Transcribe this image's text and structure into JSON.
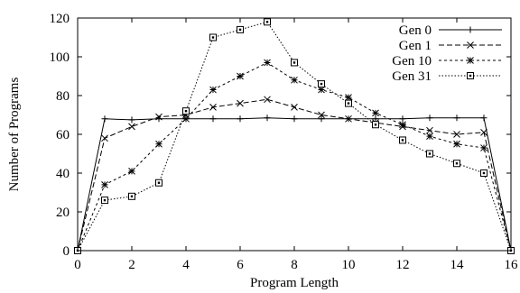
{
  "chart_data": {
    "type": "line",
    "xlabel": "Program Length",
    "ylabel": "Number of Programs",
    "xlim": [
      0,
      16
    ],
    "ylim": [
      0,
      120
    ],
    "xticks": [
      0,
      2,
      4,
      6,
      8,
      10,
      12,
      14,
      16
    ],
    "yticks": [
      0,
      20,
      40,
      60,
      80,
      100,
      120
    ],
    "grid": false,
    "legend_position": "top-right",
    "x": [
      0,
      1,
      2,
      3,
      4,
      5,
      6,
      7,
      8,
      9,
      10,
      11,
      12,
      13,
      14,
      15,
      16
    ],
    "series": [
      {
        "name": "Gen 0",
        "marker": "plus",
        "dash": "solid",
        "values": [
          0,
          68,
          67.5,
          68,
          68,
          68,
          68,
          68.5,
          68,
          68,
          68,
          68,
          68,
          68.5,
          68.5,
          68.5,
          0
        ]
      },
      {
        "name": "Gen 1",
        "marker": "cross",
        "dash": "dashed",
        "values": [
          0,
          58,
          64,
          69,
          70,
          74,
          76,
          78,
          74,
          70,
          68,
          66,
          64,
          62,
          60,
          61,
          0
        ]
      },
      {
        "name": "Gen 10",
        "marker": "star",
        "dash": "dotted",
        "values": [
          0,
          34,
          41,
          55,
          68,
          83,
          90,
          97,
          88,
          83,
          79,
          71,
          65,
          59,
          55,
          53,
          0
        ]
      },
      {
        "name": "Gen 31",
        "marker": "square",
        "dash": "fine-dotted",
        "values": [
          0,
          26,
          28,
          35,
          72,
          110,
          114,
          118,
          97,
          86,
          76,
          65,
          57,
          50,
          45,
          40,
          0
        ]
      }
    ]
  }
}
